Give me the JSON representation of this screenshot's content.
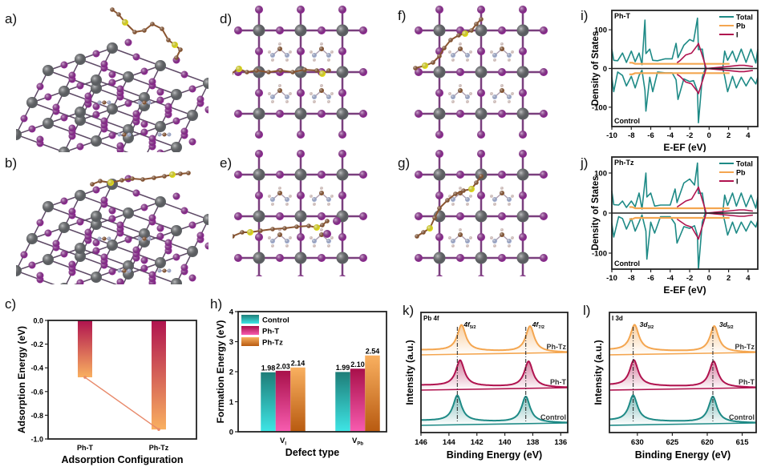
{
  "panels": {
    "a": "a)",
    "b": "b)",
    "c": "c)",
    "d": "d)",
    "e": "e)",
    "f": "f)",
    "g": "g)",
    "h": "h)",
    "i": "i)",
    "j": "j)",
    "k": "k)",
    "l": "l)"
  },
  "structures": {
    "a": {
      "view": "perspective",
      "adsorbate": "Ph-T",
      "mode": "vertical"
    },
    "b": {
      "view": "perspective",
      "adsorbate": "Ph-Tz",
      "mode": "flat"
    },
    "d": {
      "view": "top",
      "adsorbate": "Ph-T"
    },
    "e": {
      "view": "top",
      "adsorbate": "Ph-Tz"
    },
    "f": {
      "view": "top",
      "adsorbate": "Ph-T tilted"
    },
    "g": {
      "view": "top",
      "adsorbate": "Ph-Tz tilted"
    },
    "atom_colors": {
      "Pb": "#5f6266",
      "I": "#8e2a92",
      "C": "#8a5530",
      "S": "#e8e21a",
      "N": "#a8b4d8",
      "H": "#e8d4d0"
    }
  },
  "colors": {
    "control": "#1e8a86",
    "pht": "#b0134f",
    "phtz": "#f4a650",
    "total": "#1e8a86",
    "pb": "#f4a650",
    "i": "#b0134f",
    "link": "#e8896a"
  },
  "chart_data": [
    {
      "id": "c",
      "type": "bar",
      "title": "",
      "categories": [
        "Ph-T",
        "Ph-Tz"
      ],
      "values": [
        -0.48,
        -0.92
      ],
      "xlabel": "Adsorption Configuration",
      "ylabel": "Adsorption Energy (eV)",
      "ylim": [
        -1.0,
        0.0
      ],
      "yticks": [
        "0.0",
        "-0.2",
        "-0.4",
        "-0.6",
        "-0.8",
        "-1.0"
      ],
      "ytick_values": [
        0.0,
        -0.2,
        -0.4,
        -0.6,
        -0.8,
        -1.0
      ],
      "connector_line": true
    },
    {
      "id": "h",
      "type": "bar",
      "categories": [
        "V_I",
        "V_Pb"
      ],
      "category_labels": [
        {
          "main": "V",
          "sub": "I"
        },
        {
          "main": "V",
          "sub": "Pb"
        }
      ],
      "series": [
        {
          "name": "Control",
          "values": [
            1.98,
            1.99
          ]
        },
        {
          "name": "Ph-T",
          "values": [
            2.03,
            2.1
          ]
        },
        {
          "name": "Ph-Tz",
          "values": [
            2.14,
            2.54
          ]
        }
      ],
      "data_labels": [
        [
          "1.98",
          "1.99"
        ],
        [
          "2.03",
          "2.10"
        ],
        [
          "2.14",
          "2.54"
        ]
      ],
      "xlabel": "Defect type",
      "ylabel": "Formation Energy (eV)",
      "ylim": [
        0,
        4
      ],
      "yticks": [
        "0",
        "1",
        "2",
        "3",
        "4"
      ],
      "ytick_values": [
        0,
        1,
        2,
        3,
        4
      ],
      "legend": "top-left"
    },
    {
      "id": "i",
      "type": "line",
      "annotation_top": "Ph-T",
      "annotation_bottom": "Control",
      "xlabel": "E-EF (eV)",
      "ylabel": "Density of States",
      "xlim": [
        -10,
        5
      ],
      "ylim": [
        -150,
        150
      ],
      "xticks": [
        "-10",
        "-8",
        "-6",
        "-4",
        "-2",
        "0",
        "2",
        "4"
      ],
      "xtick_values": [
        -10,
        -8,
        -6,
        -4,
        -2,
        0,
        2,
        4
      ],
      "yticks": [
        "100",
        "0",
        "-100"
      ],
      "ytick_values": [
        100,
        0,
        -100
      ],
      "legend": "top-right",
      "series": [
        {
          "name": "Total",
          "peaks": [
            [
              -10,
              50
            ],
            [
              -9.8,
              -60
            ],
            [
              -9.4,
              20
            ],
            [
              -8.9,
              40
            ],
            [
              -8.5,
              -45
            ],
            [
              -8.0,
              45
            ],
            [
              -7.6,
              -50
            ],
            [
              -7.2,
              40
            ],
            [
              -6.9,
              10
            ],
            [
              -6.6,
              125
            ],
            [
              -6.5,
              -110
            ],
            [
              -6.1,
              50
            ],
            [
              -5.8,
              -60
            ],
            [
              -5.3,
              20
            ],
            [
              -4.5,
              25
            ],
            [
              -3.8,
              25
            ],
            [
              -3.4,
              65
            ],
            [
              -3.2,
              -80
            ],
            [
              -2.6,
              60
            ],
            [
              -2.0,
              75
            ],
            [
              -1.6,
              70
            ],
            [
              -1.2,
              130
            ],
            [
              -1.1,
              -140
            ],
            [
              -0.7,
              50
            ],
            [
              -0.4,
              0
            ],
            [
              1.4,
              0
            ],
            [
              1.6,
              45
            ],
            [
              1.9,
              -60
            ],
            [
              2.4,
              45
            ],
            [
              2.8,
              -50
            ],
            [
              3.3,
              50
            ],
            [
              3.8,
              -45
            ],
            [
              4.3,
              50
            ],
            [
              4.8,
              -40
            ],
            [
              5.0,
              50
            ]
          ]
        },
        {
          "name": "Pb",
          "peaks": [
            [
              -8.2,
              15
            ],
            [
              -7.9,
              -15
            ],
            [
              -7.6,
              12
            ],
            [
              1.9,
              12
            ],
            [
              2.1,
              -12
            ]
          ]
        },
        {
          "name": "I",
          "peaks": [
            [
              -3.3,
              15
            ],
            [
              -3.0,
              -20
            ],
            [
              -2.4,
              35
            ],
            [
              -1.8,
              40
            ],
            [
              -1.2,
              60
            ],
            [
              -1.1,
              -65
            ],
            [
              -0.6,
              25
            ],
            [
              -0.3,
              0
            ],
            [
              1.9,
              5
            ],
            [
              3.1,
              8
            ],
            [
              3.6,
              -8
            ],
            [
              4.5,
              5
            ]
          ]
        }
      ]
    },
    {
      "id": "j",
      "type": "line",
      "annotation_top": "Ph-Tz",
      "annotation_bottom": "Control",
      "xlabel": "E-EF (eV)",
      "ylabel": "Density of States",
      "xlim": [
        -10,
        5
      ],
      "ylim": [
        -140,
        140
      ],
      "xticks": [
        "-10",
        "-8",
        "-6",
        "-4",
        "-2",
        "0",
        "2",
        "4"
      ],
      "xtick_values": [
        -10,
        -8,
        -6,
        -4,
        -2,
        0,
        2,
        4
      ],
      "yticks": [
        "100",
        "0",
        "-100"
      ],
      "ytick_values": [
        100,
        0,
        -100
      ],
      "legend": "top-right",
      "series": [
        {
          "name": "Total",
          "peaks": [
            [
              -10,
              55
            ],
            [
              -9.8,
              -60
            ],
            [
              -9.3,
              20
            ],
            [
              -8.9,
              30
            ],
            [
              -8.5,
              -40
            ],
            [
              -8.0,
              30
            ],
            [
              -7.6,
              -45
            ],
            [
              -7.2,
              50
            ],
            [
              -6.9,
              10
            ],
            [
              -6.5,
              100
            ],
            [
              -6.4,
              -115
            ],
            [
              -6.0,
              50
            ],
            [
              -5.6,
              -50
            ],
            [
              -5.0,
              20
            ],
            [
              -4.0,
              20
            ],
            [
              -3.5,
              60
            ],
            [
              -3.3,
              -75
            ],
            [
              -2.6,
              75
            ],
            [
              -2.0,
              85
            ],
            [
              -1.5,
              70
            ],
            [
              -1.2,
              125
            ],
            [
              -1.1,
              -140
            ],
            [
              -0.7,
              50
            ],
            [
              -0.4,
              0
            ],
            [
              1.4,
              0
            ],
            [
              1.6,
              45
            ],
            [
              1.9,
              -55
            ],
            [
              2.4,
              50
            ],
            [
              2.8,
              -50
            ],
            [
              3.3,
              50
            ],
            [
              3.8,
              -45
            ],
            [
              4.3,
              45
            ],
            [
              4.8,
              -35
            ],
            [
              5.0,
              40
            ]
          ]
        },
        {
          "name": "Pb",
          "peaks": [
            [
              -8.2,
              15
            ],
            [
              -7.9,
              -15
            ],
            [
              -7.6,
              12
            ],
            [
              1.9,
              12
            ],
            [
              2.1,
              -12
            ]
          ]
        },
        {
          "name": "I",
          "peaks": [
            [
              -3.3,
              15
            ],
            [
              -3.0,
              -20
            ],
            [
              -2.4,
              30
            ],
            [
              -1.8,
              35
            ],
            [
              -1.2,
              60
            ],
            [
              -1.1,
              -65
            ],
            [
              -0.6,
              25
            ],
            [
              -0.3,
              0
            ],
            [
              1.9,
              5
            ],
            [
              3.1,
              8
            ],
            [
              3.6,
              -8
            ],
            [
              4.5,
              5
            ]
          ]
        }
      ]
    },
    {
      "id": "k",
      "type": "line",
      "annotation_top": "Pb 4f",
      "xlabel": "Binding Energy (eV)",
      "ylabel": "Intensity (a.u.)",
      "xlim": [
        146,
        135.5
      ],
      "xticks": [
        "146",
        "144",
        "142",
        "140",
        "138",
        "136"
      ],
      "xtick_values": [
        146,
        144,
        142,
        140,
        138,
        136
      ],
      "peak_labels": [
        {
          "main": "4f",
          "sub": "5/2",
          "x": 143.4
        },
        {
          "main": "4f",
          "sub": "7/2",
          "x": 138.5
        }
      ],
      "reference_lines": [
        143.4,
        138.5
      ],
      "series": [
        {
          "name": "Ph-Tz",
          "peaks": [
            143.1,
            138.2
          ],
          "offset": 2
        },
        {
          "name": "Ph-T",
          "peaks": [
            143.2,
            138.3
          ],
          "offset": 1
        },
        {
          "name": "Control",
          "peaks": [
            143.4,
            138.5
          ],
          "offset": 0
        }
      ]
    },
    {
      "id": "l",
      "type": "line",
      "annotation_top": "I 3d",
      "xlabel": "Binding Energy (eV)",
      "ylabel": "Intensity (a.u.)",
      "xlim": [
        634,
        613
      ],
      "xticks": [
        "630",
        "625",
        "620",
        "615"
      ],
      "xtick_values": [
        630,
        625,
        620,
        615
      ],
      "peak_labels": [
        {
          "main": "3d",
          "sub": "3/2",
          "x": 630.6
        },
        {
          "main": "3d",
          "sub": "5/2",
          "x": 619.2
        }
      ],
      "reference_lines": [
        630.6,
        619.2
      ],
      "series": [
        {
          "name": "Ph-Tz",
          "peaks": [
            630.4,
            619.0
          ],
          "offset": 2
        },
        {
          "name": "Ph-T",
          "peaks": [
            630.5,
            619.1
          ],
          "offset": 1
        },
        {
          "name": "Control",
          "peaks": [
            630.6,
            619.2
          ],
          "offset": 0
        }
      ]
    }
  ]
}
